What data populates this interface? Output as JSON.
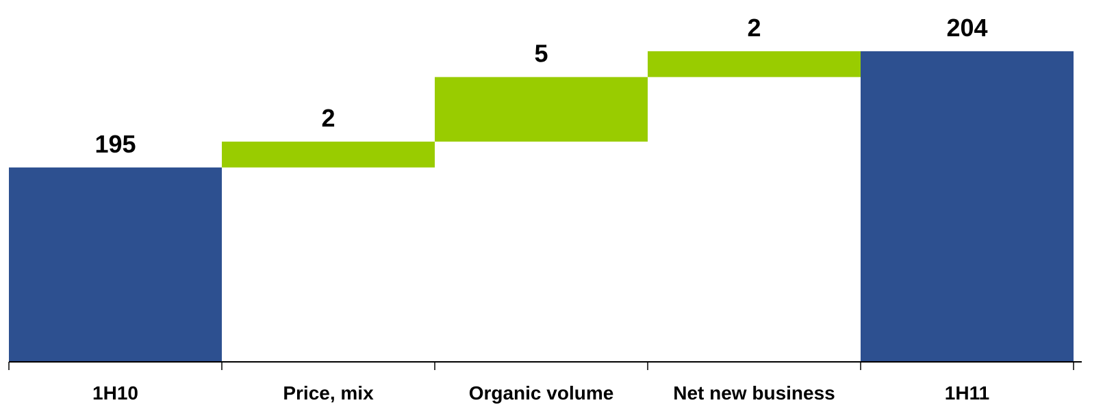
{
  "chart_data": {
    "type": "bar",
    "subtype": "waterfall",
    "categories": [
      "1H10",
      "Price, mix",
      "Organic volume",
      "Net new business",
      "1H11"
    ],
    "values": [
      195,
      2,
      5,
      2,
      204
    ],
    "value_labels": [
      "195",
      "2",
      "5",
      "2",
      "204"
    ],
    "kinds": [
      "total",
      "delta",
      "delta",
      "delta",
      "total"
    ],
    "title": "",
    "xlabel": "",
    "ylabel": "",
    "ylim": [
      180,
      205
    ],
    "grid": false,
    "legend": "none",
    "colors": {
      "total": "#2d5090",
      "delta": "#99cc00",
      "axis": "#000000"
    }
  }
}
